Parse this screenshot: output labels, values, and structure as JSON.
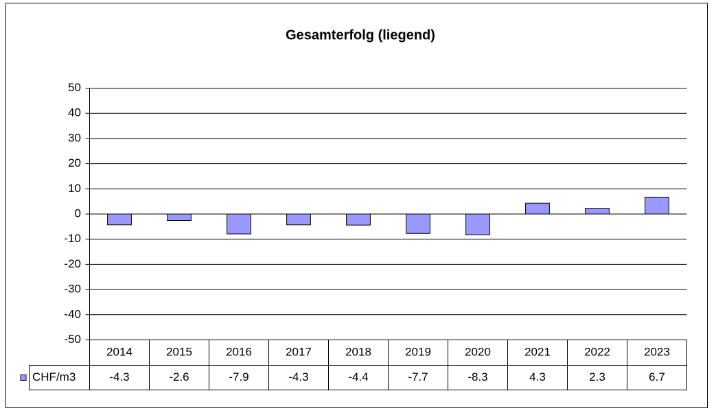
{
  "chart_data": {
    "type": "bar",
    "title": "Gesamterfolg (liegend)",
    "categories": [
      "2014",
      "2015",
      "2016",
      "2017",
      "2018",
      "2019",
      "2020",
      "2021",
      "2022",
      "2023"
    ],
    "series": [
      {
        "name": "CHF/m3",
        "color": "#9999ff",
        "values": [
          -4.3,
          -2.6,
          -7.9,
          -4.3,
          -4.4,
          -7.7,
          -8.3,
          4.3,
          2.3,
          6.7
        ]
      }
    ],
    "ylim": [
      -50,
      50
    ],
    "yticks": [
      -50,
      -40,
      -30,
      -20,
      -10,
      0,
      10,
      20,
      30,
      40,
      50
    ],
    "grid": true
  }
}
